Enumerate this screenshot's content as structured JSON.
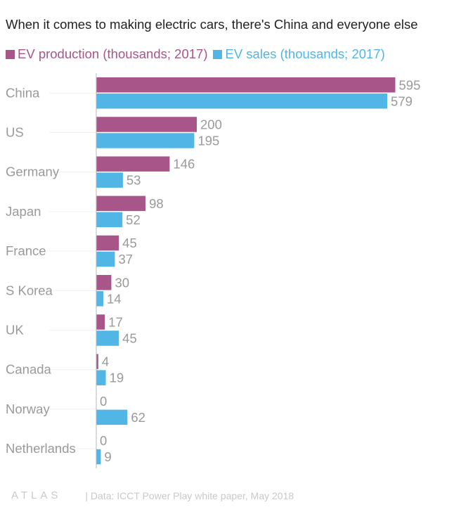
{
  "title": "When it comes to making electric cars, there's China and everyone else",
  "legend": {
    "production_label": "EV production (thousands; 2017)",
    "sales_label": "EV sales (thousands; 2017)"
  },
  "colors": {
    "production": "#a8558a",
    "sales": "#51b5e6",
    "category_text": "#9a9a9a",
    "value_text": "#9a9a9a",
    "axis": "#b8b8b8"
  },
  "chart_data": {
    "type": "bar",
    "orientation": "horizontal",
    "title": "When it comes to making electric cars, there's China and everyone else",
    "categories": [
      "China",
      "US",
      "Germany",
      "Japan",
      "France",
      "S Korea",
      "UK",
      "Canada",
      "Norway",
      "Netherlands"
    ],
    "series": [
      {
        "name": "EV production (thousands; 2017)",
        "values": [
          595,
          200,
          146,
          98,
          45,
          30,
          17,
          4,
          0,
          0
        ]
      },
      {
        "name": "EV sales (thousands; 2017)",
        "values": [
          579,
          195,
          53,
          52,
          37,
          14,
          45,
          19,
          62,
          9
        ]
      }
    ],
    "xlim": [
      0,
      600
    ],
    "xlabel": "",
    "ylabel": "",
    "grid": false,
    "legend_position": "top-left",
    "data_labels": true
  },
  "footer": {
    "logo": "ATLAS",
    "source": "| Data: ICCT Power Play white paper, May 2018"
  }
}
